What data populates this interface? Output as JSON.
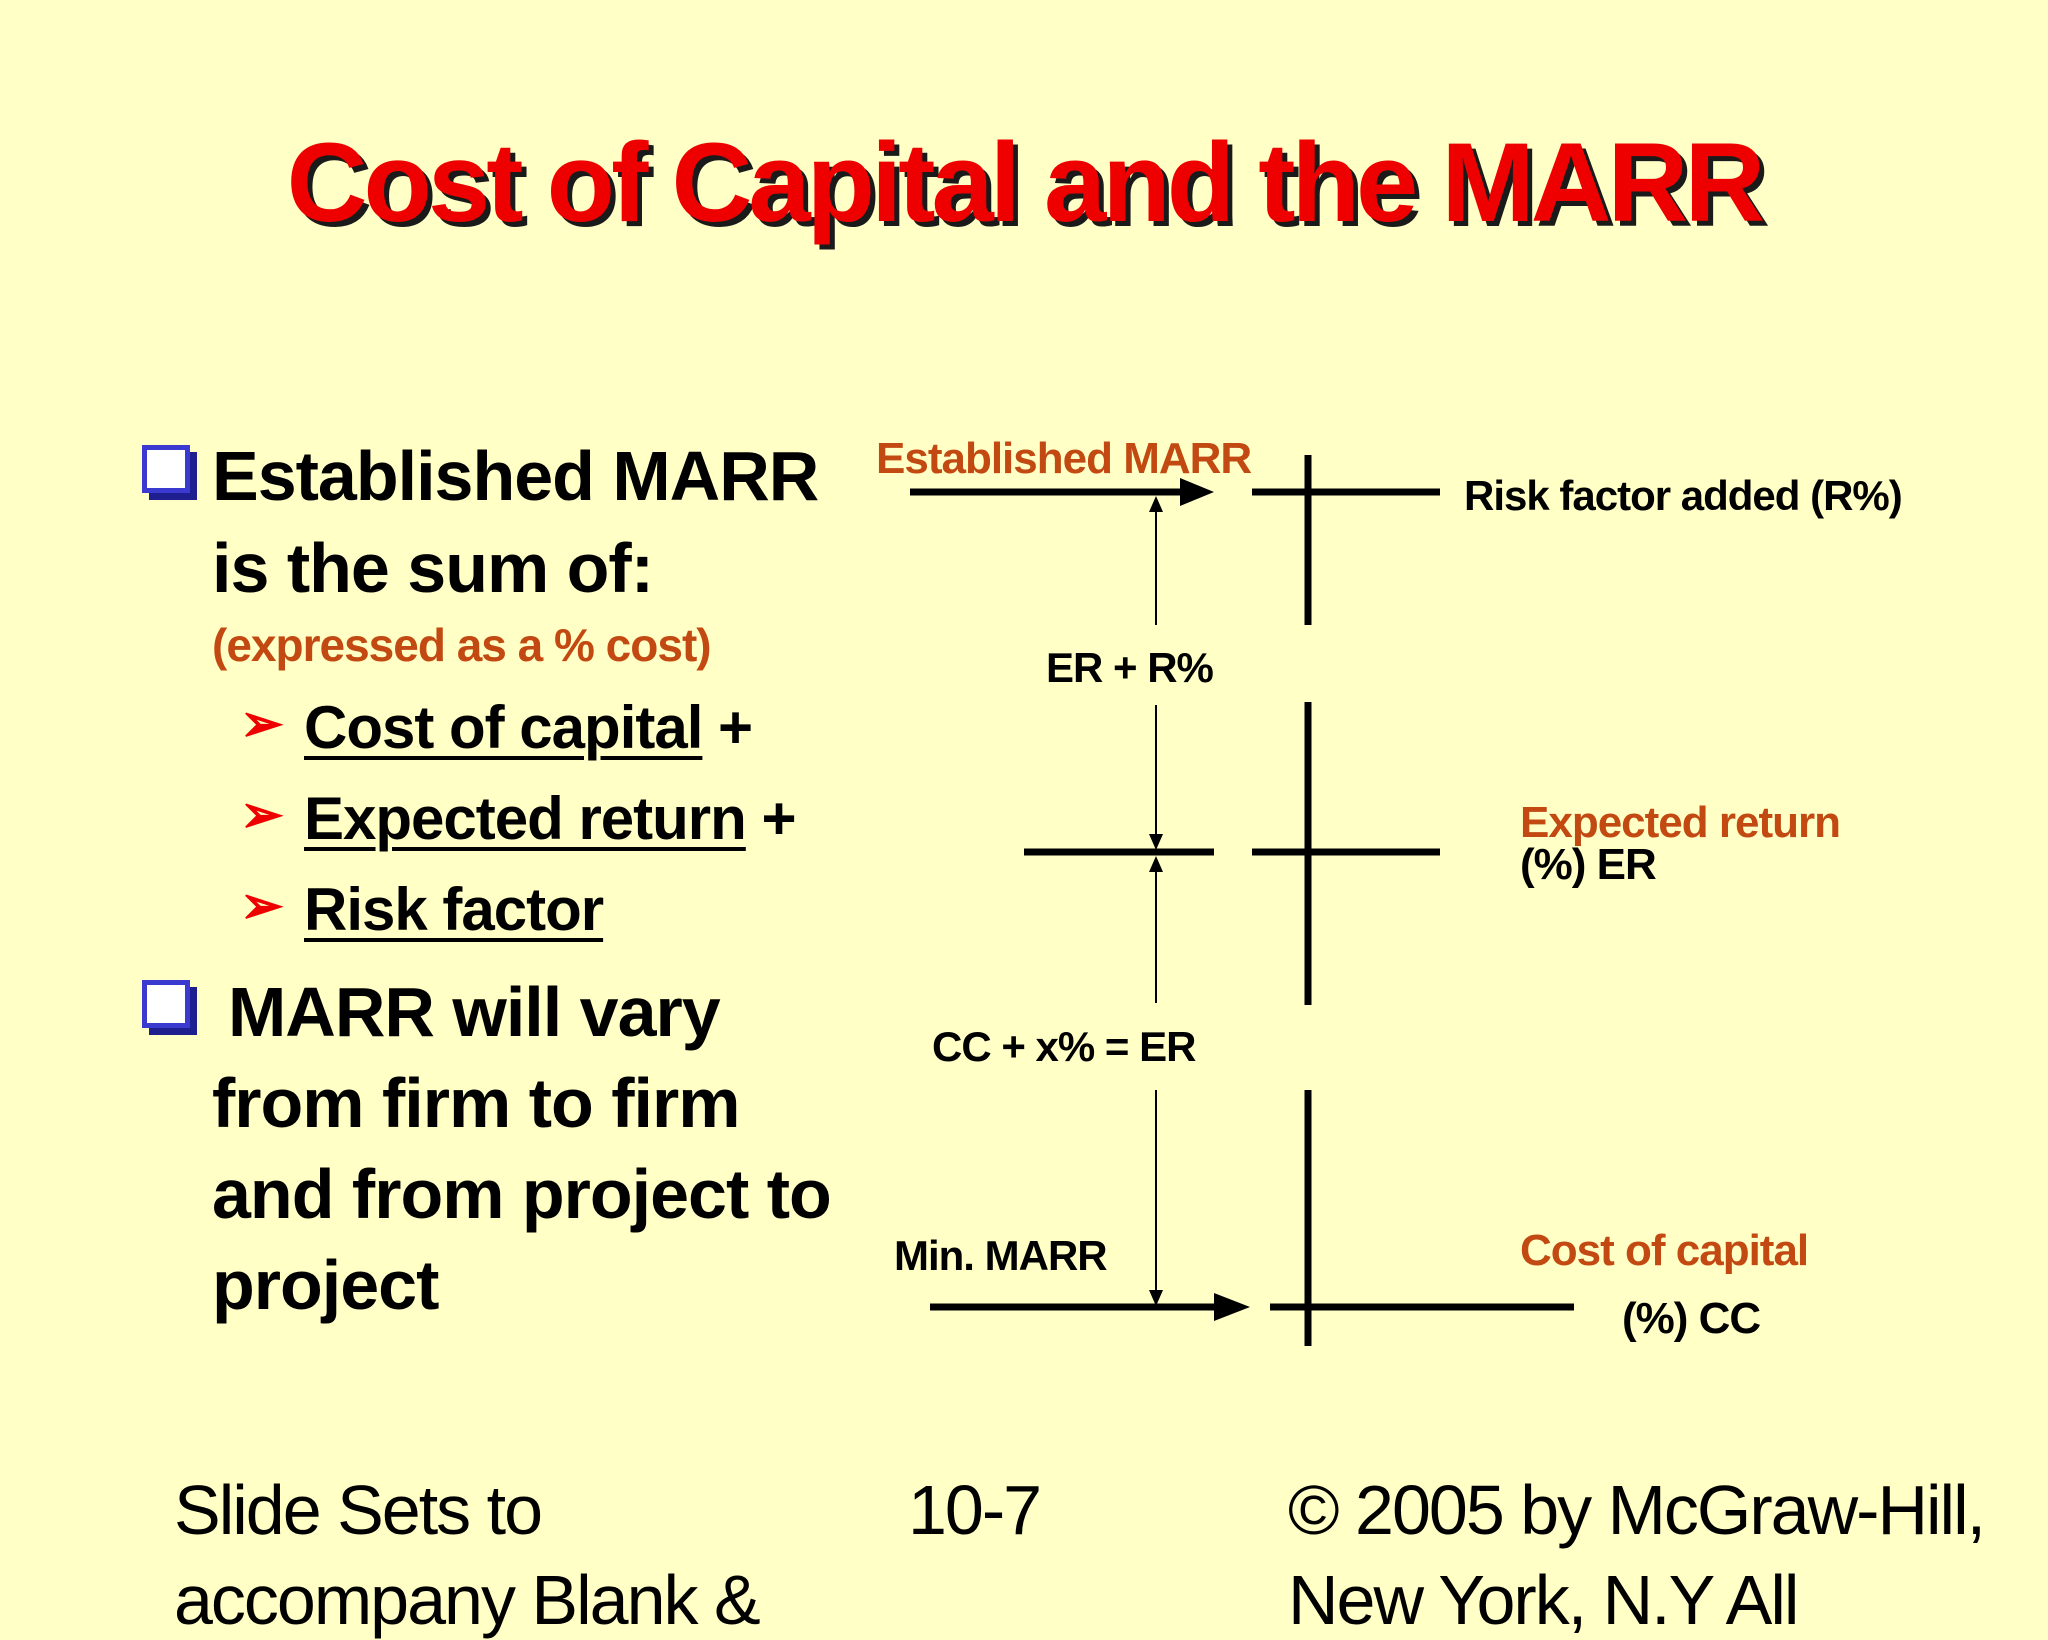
{
  "title": "Cost of Capital and the MARR",
  "bullets": {
    "first_line1": "Established MARR",
    "first_line2": "is the sum of:",
    "first_note": "(expressed as a % cost)",
    "items": [
      {
        "label": "Cost of capital",
        "suffix": " +"
      },
      {
        "label": "Expected return",
        "suffix": " +"
      },
      {
        "label": "Risk factor",
        "suffix": ""
      }
    ],
    "second_line1": "MARR will vary",
    "second_line2": "from firm to firm",
    "second_line3": "and from project to",
    "second_line4": "project"
  },
  "diagram": {
    "established_marr": "Established MARR",
    "risk_factor": "Risk factor added (R%)",
    "er_plus_r": "ER + R%",
    "expected_return": "Expected return",
    "expected_return_unit": "(%) ER",
    "cc_plus_x": "CC  + x% = ER",
    "min_marr": "Min. MARR",
    "cost_of_capital": "Cost of capital",
    "cost_of_capital_unit": "(%) CC"
  },
  "footer": {
    "left_line1": "Slide Sets  to",
    "left_line2": "accompany Blank &",
    "center": "10-7",
    "right_line1": "© 2005  by McGraw-Hill,",
    "right_line2": "New York, N.Y All"
  },
  "colors": {
    "title": "#ee0000",
    "accent_text": "#c24a12",
    "bullet_border": "#3a3ad0",
    "background": "#ffffc6"
  }
}
